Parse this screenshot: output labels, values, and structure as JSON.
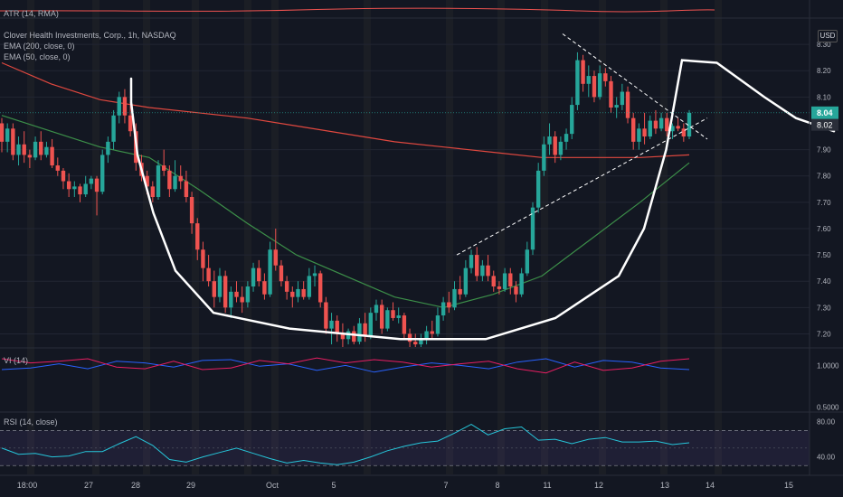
{
  "colors": {
    "background": "#131722",
    "up": "#26a69a",
    "down": "#ef5350",
    "ema200": "#e0483f",
    "ema50": "#3c8f49",
    "vi_plus": "#2962ff",
    "vi_minus": "#e91e63",
    "rsi": "#26c6da",
    "axis_text": "#b2b5be",
    "drawing": "#ffffff"
  },
  "legend": {
    "atr": "ATR (14, RMA)",
    "title": "Clover Health Investments, Corp., 1h, NASDAQ",
    "ema200": "EMA (200, close, 0)",
    "ema50": "EMA (50, close, 0)",
    "vi": "VI (14)",
    "rsi": "RSI (14, close)"
  },
  "currency": "USD",
  "chart_data": {
    "type": "candlestick",
    "price_axis": {
      "ticks": [
        8.3,
        8.2,
        8.1,
        7.9,
        7.8,
        7.7,
        7.6,
        7.5,
        7.4,
        7.3,
        7.2
      ],
      "tick_labels": [
        "8.30",
        "8.20",
        "8.10",
        "7.90",
        "7.80",
        "7.70",
        "7.60",
        "7.50",
        "7.40",
        "7.30",
        "7.20"
      ],
      "ylim": [
        7.15,
        8.4
      ],
      "last_price": "8.04",
      "prev_close_label": "8.02"
    },
    "x_axis": {
      "labels": [
        "18:00",
        "27",
        "28",
        "29",
        "Oct",
        "5",
        "7",
        "8",
        "11",
        "12",
        "13",
        "14",
        "15"
      ]
    },
    "candles_ohlc": [
      [
        8.0,
        8.02,
        7.89,
        7.93
      ],
      [
        7.93,
        8.0,
        7.89,
        7.98
      ],
      [
        7.98,
        8.0,
        7.86,
        7.88
      ],
      [
        7.88,
        7.95,
        7.84,
        7.92
      ],
      [
        7.92,
        7.97,
        7.85,
        7.88
      ],
      [
        7.88,
        7.9,
        7.83,
        7.87
      ],
      [
        7.87,
        7.95,
        7.86,
        7.93
      ],
      [
        7.93,
        7.97,
        7.86,
        7.88
      ],
      [
        7.88,
        7.93,
        7.87,
        7.91
      ],
      [
        7.91,
        7.94,
        7.83,
        7.84
      ],
      [
        7.84,
        7.87,
        7.8,
        7.82
      ],
      [
        7.82,
        7.83,
        7.75,
        7.78
      ],
      [
        7.78,
        7.81,
        7.72,
        7.75
      ],
      [
        7.75,
        7.78,
        7.72,
        7.76
      ],
      [
        7.76,
        7.77,
        7.7,
        7.73
      ],
      [
        7.73,
        7.8,
        7.72,
        7.77
      ],
      [
        7.77,
        7.8,
        7.75,
        7.79
      ],
      [
        7.79,
        7.8,
        7.65,
        7.74
      ],
      [
        7.74,
        7.9,
        7.73,
        7.88
      ],
      [
        7.88,
        7.95,
        7.85,
        7.93
      ],
      [
        7.93,
        8.05,
        7.9,
        8.03
      ],
      [
        8.03,
        8.12,
        8.0,
        8.1
      ],
      [
        8.1,
        8.13,
        8.0,
        8.03
      ],
      [
        8.03,
        8.08,
        7.95,
        7.97
      ],
      [
        7.97,
        8.0,
        7.82,
        7.85
      ],
      [
        7.85,
        7.88,
        7.78,
        7.8
      ],
      [
        7.8,
        7.82,
        7.73,
        7.76
      ],
      [
        7.76,
        7.78,
        7.7,
        7.72
      ],
      [
        7.72,
        7.86,
        7.71,
        7.84
      ],
      [
        7.84,
        7.9,
        7.8,
        7.82
      ],
      [
        7.82,
        7.84,
        7.72,
        7.75
      ],
      [
        7.75,
        7.86,
        7.74,
        7.8
      ],
      [
        7.8,
        7.84,
        7.75,
        7.78
      ],
      [
        7.78,
        7.82,
        7.7,
        7.72
      ],
      [
        7.72,
        7.74,
        7.58,
        7.62
      ],
      [
        7.62,
        7.64,
        7.48,
        7.52
      ],
      [
        7.52,
        7.55,
        7.4,
        7.45
      ],
      [
        7.45,
        7.5,
        7.38,
        7.4
      ],
      [
        7.4,
        7.44,
        7.3,
        7.34
      ],
      [
        7.34,
        7.45,
        7.32,
        7.42
      ],
      [
        7.42,
        7.44,
        7.28,
        7.3
      ],
      [
        7.3,
        7.38,
        7.26,
        7.36
      ],
      [
        7.36,
        7.4,
        7.32,
        7.34
      ],
      [
        7.34,
        7.38,
        7.28,
        7.32
      ],
      [
        7.32,
        7.4,
        7.3,
        7.38
      ],
      [
        7.38,
        7.47,
        7.36,
        7.45
      ],
      [
        7.45,
        7.48,
        7.38,
        7.4
      ],
      [
        7.4,
        7.43,
        7.33,
        7.35
      ],
      [
        7.35,
        7.55,
        7.34,
        7.52
      ],
      [
        7.52,
        7.6,
        7.44,
        7.46
      ],
      [
        7.46,
        7.48,
        7.38,
        7.4
      ],
      [
        7.4,
        7.42,
        7.33,
        7.36
      ],
      [
        7.36,
        7.38,
        7.3,
        7.34
      ],
      [
        7.34,
        7.4,
        7.32,
        7.37
      ],
      [
        7.37,
        7.4,
        7.33,
        7.34
      ],
      [
        7.34,
        7.45,
        7.33,
        7.42
      ],
      [
        7.42,
        7.46,
        7.38,
        7.43
      ],
      [
        7.43,
        7.44,
        7.3,
        7.32
      ],
      [
        7.32,
        7.34,
        7.2,
        7.22
      ],
      [
        7.22,
        7.28,
        7.16,
        7.25
      ],
      [
        7.25,
        7.27,
        7.17,
        7.2
      ],
      [
        7.2,
        7.24,
        7.15,
        7.18
      ],
      [
        7.18,
        7.22,
        7.16,
        7.21
      ],
      [
        7.21,
        7.23,
        7.16,
        7.17
      ],
      [
        7.17,
        7.26,
        7.16,
        7.24
      ],
      [
        7.24,
        7.28,
        7.17,
        7.19
      ],
      [
        7.19,
        7.3,
        7.18,
        7.28
      ],
      [
        7.28,
        7.33,
        7.25,
        7.31
      ],
      [
        7.31,
        7.33,
        7.2,
        7.22
      ],
      [
        7.22,
        7.3,
        7.21,
        7.29
      ],
      [
        7.29,
        7.32,
        7.25,
        7.26
      ],
      [
        7.26,
        7.3,
        7.24,
        7.27
      ],
      [
        7.27,
        7.28,
        7.18,
        7.2
      ],
      [
        7.2,
        7.22,
        7.15,
        7.17
      ],
      [
        7.17,
        7.2,
        7.15,
        7.16
      ],
      [
        7.16,
        7.2,
        7.15,
        7.18
      ],
      [
        7.18,
        7.23,
        7.16,
        7.21
      ],
      [
        7.21,
        7.25,
        7.18,
        7.2
      ],
      [
        7.2,
        7.3,
        7.19,
        7.27
      ],
      [
        7.27,
        7.34,
        7.25,
        7.32
      ],
      [
        7.32,
        7.36,
        7.28,
        7.3
      ],
      [
        7.3,
        7.4,
        7.29,
        7.37
      ],
      [
        7.37,
        7.42,
        7.33,
        7.35
      ],
      [
        7.35,
        7.48,
        7.34,
        7.45
      ],
      [
        7.45,
        7.52,
        7.43,
        7.5
      ],
      [
        7.5,
        7.53,
        7.4,
        7.42
      ],
      [
        7.42,
        7.48,
        7.4,
        7.46
      ],
      [
        7.46,
        7.5,
        7.4,
        7.42
      ],
      [
        7.42,
        7.44,
        7.36,
        7.38
      ],
      [
        7.38,
        7.4,
        7.35,
        7.37
      ],
      [
        7.37,
        7.45,
        7.36,
        7.43
      ],
      [
        7.43,
        7.45,
        7.35,
        7.38
      ],
      [
        7.38,
        7.4,
        7.32,
        7.35
      ],
      [
        7.35,
        7.45,
        7.34,
        7.43
      ],
      [
        7.43,
        7.55,
        7.42,
        7.52
      ],
      [
        7.52,
        7.7,
        7.5,
        7.68
      ],
      [
        7.68,
        7.85,
        7.66,
        7.82
      ],
      [
        7.82,
        7.95,
        7.8,
        7.92
      ],
      [
        7.92,
        8.0,
        7.88,
        7.95
      ],
      [
        7.95,
        7.97,
        7.85,
        7.88
      ],
      [
        7.88,
        7.95,
        7.86,
        7.93
      ],
      [
        7.93,
        7.98,
        7.9,
        7.96
      ],
      [
        7.96,
        8.1,
        7.94,
        8.07
      ],
      [
        8.07,
        8.27,
        8.05,
        8.24
      ],
      [
        8.24,
        8.26,
        8.12,
        8.15
      ],
      [
        8.15,
        8.22,
        8.1,
        8.18
      ],
      [
        8.18,
        8.2,
        8.08,
        8.1
      ],
      [
        8.1,
        8.22,
        8.09,
        8.19
      ],
      [
        8.19,
        8.21,
        8.14,
        8.16
      ],
      [
        8.16,
        8.18,
        8.04,
        8.06
      ],
      [
        8.06,
        8.1,
        8.02,
        8.07
      ],
      [
        8.07,
        8.15,
        8.05,
        8.12
      ],
      [
        8.12,
        8.14,
        8.0,
        8.02
      ],
      [
        8.02,
        8.04,
        7.9,
        7.93
      ],
      [
        7.93,
        8.0,
        7.9,
        7.98
      ],
      [
        7.98,
        8.04,
        7.92,
        7.95
      ],
      [
        7.95,
        8.03,
        7.94,
        8.01
      ],
      [
        8.01,
        8.05,
        7.96,
        7.98
      ],
      [
        7.98,
        8.04,
        7.97,
        8.02
      ],
      [
        8.02,
        8.04,
        7.95,
        7.97
      ],
      [
        7.97,
        8.0,
        7.94,
        7.99
      ],
      [
        7.99,
        8.02,
        7.97,
        7.98
      ],
      [
        7.98,
        8.0,
        7.93,
        7.95
      ],
      [
        7.95,
        8.05,
        7.94,
        8.04
      ]
    ],
    "ema200": [
      8.23,
      8.15,
      8.09,
      8.06,
      8.04,
      8.02,
      7.99,
      7.96,
      7.93,
      7.91,
      7.89,
      7.87,
      7.87,
      7.87,
      7.88
    ],
    "ema50": [
      8.03,
      7.97,
      7.91,
      7.87,
      7.75,
      7.62,
      7.5,
      7.42,
      7.34,
      7.3,
      7.35,
      7.42,
      7.56,
      7.7,
      7.85
    ],
    "vi_panel": {
      "ticks": [
        "1.0000",
        "0.5000"
      ],
      "vi_plus": [
        0.95,
        0.97,
        1.02,
        0.96,
        1.05,
        1.03,
        0.98,
        1.06,
        1.07,
        0.99,
        1.02,
        0.94,
        1.0,
        0.92,
        0.98,
        1.03,
        1.0,
        0.96,
        1.04,
        1.08,
        0.98,
        1.06,
        1.04,
        0.97,
        0.95
      ],
      "vi_minus": [
        1.08,
        1.03,
        1.05,
        1.08,
        0.98,
        0.96,
        1.05,
        0.95,
        0.97,
        1.06,
        1.02,
        1.09,
        1.03,
        1.07,
        1.04,
        0.98,
        1.02,
        1.05,
        0.96,
        0.91,
        1.04,
        0.94,
        0.97,
        1.05,
        1.08
      ]
    },
    "rsi_panel": {
      "ticks": [
        "80.00",
        "40.00"
      ],
      "bands": [
        70,
        30
      ],
      "rsi": [
        50,
        43,
        44,
        40,
        41,
        46,
        46,
        55,
        63,
        53,
        37,
        34,
        40,
        45,
        50,
        44,
        38,
        33,
        36,
        33,
        31,
        34,
        40,
        47,
        52,
        56,
        58,
        67,
        77,
        65,
        72,
        74,
        59,
        60,
        55,
        60,
        62,
        57,
        57,
        58,
        54,
        56
      ]
    }
  }
}
